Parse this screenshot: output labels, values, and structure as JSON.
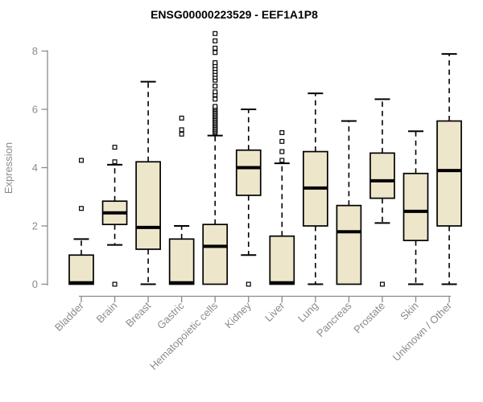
{
  "chart_data": {
    "type": "boxplot",
    "title": "ENSG00000223529 - EEF1A1P8",
    "ylabel": "Expression",
    "xlabel": "",
    "y_ticks": [
      0,
      2,
      4,
      6,
      8
    ],
    "ylim": [
      0,
      8.6
    ],
    "grid": false,
    "legend": false,
    "categories": [
      "Bladder",
      "Brain",
      "Breast",
      "Gastric",
      "Hematopoietic cells",
      "Kidney",
      "Liver",
      "Lung",
      "Pancreas",
      "Prostate",
      "Skin",
      "Unknown / Other"
    ],
    "boxes": [
      {
        "category": "Bladder",
        "whisker_low": 0,
        "q1": 0,
        "median": 0.05,
        "q3": 1.0,
        "whisker_high": 1.55,
        "outliers": [
          2.6,
          4.25
        ]
      },
      {
        "category": "Brain",
        "whisker_low": 1.35,
        "q1": 2.05,
        "median": 2.45,
        "q3": 2.85,
        "whisker_high": 4.1,
        "outliers": [
          0,
          4.2,
          4.7
        ]
      },
      {
        "category": "Breast",
        "whisker_low": 0,
        "q1": 1.2,
        "median": 1.95,
        "q3": 4.2,
        "whisker_high": 6.95,
        "outliers": []
      },
      {
        "category": "Gastric",
        "whisker_low": 0,
        "q1": 0,
        "median": 0.05,
        "q3": 1.55,
        "whisker_high": 2.0,
        "outliers": [
          5.15,
          5.3,
          5.7
        ]
      },
      {
        "category": "Hematopoietic cells",
        "whisker_low": 0,
        "q1": 0,
        "median": 1.3,
        "q3": 2.05,
        "whisker_high": 5.1,
        "outliers": [
          5.2,
          5.25,
          5.3,
          5.35,
          5.4,
          5.45,
          5.5,
          5.55,
          5.6,
          5.65,
          5.7,
          5.75,
          5.8,
          5.85,
          5.9,
          5.95,
          6.0,
          6.05,
          6.1,
          6.35,
          6.5,
          6.6,
          6.8,
          7.0,
          7.1,
          7.2,
          7.3,
          7.4,
          7.5,
          7.6,
          7.95,
          8.1,
          8.35,
          8.6
        ]
      },
      {
        "category": "Kidney",
        "whisker_low": 1.0,
        "q1": 3.05,
        "median": 4.0,
        "q3": 4.6,
        "whisker_high": 6.0,
        "outliers": [
          0
        ]
      },
      {
        "category": "Liver",
        "whisker_low": 0,
        "q1": 0,
        "median": 0.05,
        "q3": 1.65,
        "whisker_high": 4.15,
        "outliers": [
          4.25,
          4.55,
          4.9,
          5.2
        ]
      },
      {
        "category": "Lung",
        "whisker_low": 0,
        "q1": 2.0,
        "median": 3.3,
        "q3": 4.55,
        "whisker_high": 6.55,
        "outliers": []
      },
      {
        "category": "Pancreas",
        "whisker_low": 0,
        "q1": 0,
        "median": 1.8,
        "q3": 2.7,
        "whisker_high": 5.6,
        "outliers": []
      },
      {
        "category": "Prostate",
        "whisker_low": 2.1,
        "q1": 2.95,
        "median": 3.55,
        "q3": 4.5,
        "whisker_high": 6.35,
        "outliers": [
          0
        ]
      },
      {
        "category": "Skin",
        "whisker_low": 0,
        "q1": 1.5,
        "median": 2.5,
        "q3": 3.8,
        "whisker_high": 5.25,
        "outliers": []
      },
      {
        "category": "Unknown / Other",
        "whisker_low": 0,
        "q1": 2.0,
        "median": 3.9,
        "q3": 5.6,
        "whisker_high": 7.9,
        "outliers": []
      }
    ],
    "colors": {
      "box_fill": "#EDE6CA",
      "box_border": "#000000",
      "median": "#000000",
      "whisker": "#000000",
      "outlier_fill": "#FFFFFF",
      "axis": "#8B8B8B",
      "tick_label": "#8B8B8B",
      "title": "#000000",
      "background": "#FFFFFF"
    }
  }
}
